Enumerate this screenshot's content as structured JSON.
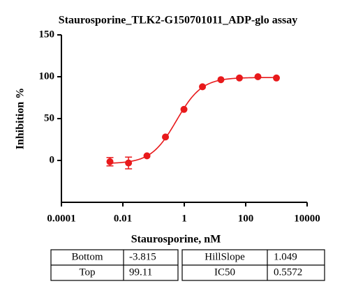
{
  "chart_data": {
    "type": "scatter",
    "title": "Staurosporine_TLK2-G150701011_ADP-glo assay",
    "x_label": "Staurosporine, nM",
    "y_label": "Inhibition %",
    "x_scale": "log",
    "xlim": [
      0.0001,
      10000
    ],
    "xticks": [
      0.0001,
      0.01,
      1,
      100,
      10000
    ],
    "ylim": [
      -50,
      150
    ],
    "yticks": [
      0,
      50,
      100,
      150
    ],
    "series": [
      {
        "color": "#e8191b",
        "x": [
          0.0038,
          0.0153,
          0.061,
          0.244,
          0.977,
          3.91,
          15.6,
          62.5,
          250,
          1000
        ],
        "values": [
          -1.5,
          -3,
          5.5,
          28,
          61,
          88,
          96.5,
          98.5,
          100,
          98.5
        ],
        "errors": [
          5,
          7,
          null,
          null,
          null,
          null,
          null,
          null,
          null,
          null
        ]
      }
    ],
    "fit": [
      {
        "name": "Bottom",
        "value": -3.815
      },
      {
        "name": "Top",
        "value": 99.11
      },
      {
        "name": "HillSlope",
        "value": 1.049
      },
      {
        "name": "IC50",
        "value": 0.5572
      }
    ]
  }
}
